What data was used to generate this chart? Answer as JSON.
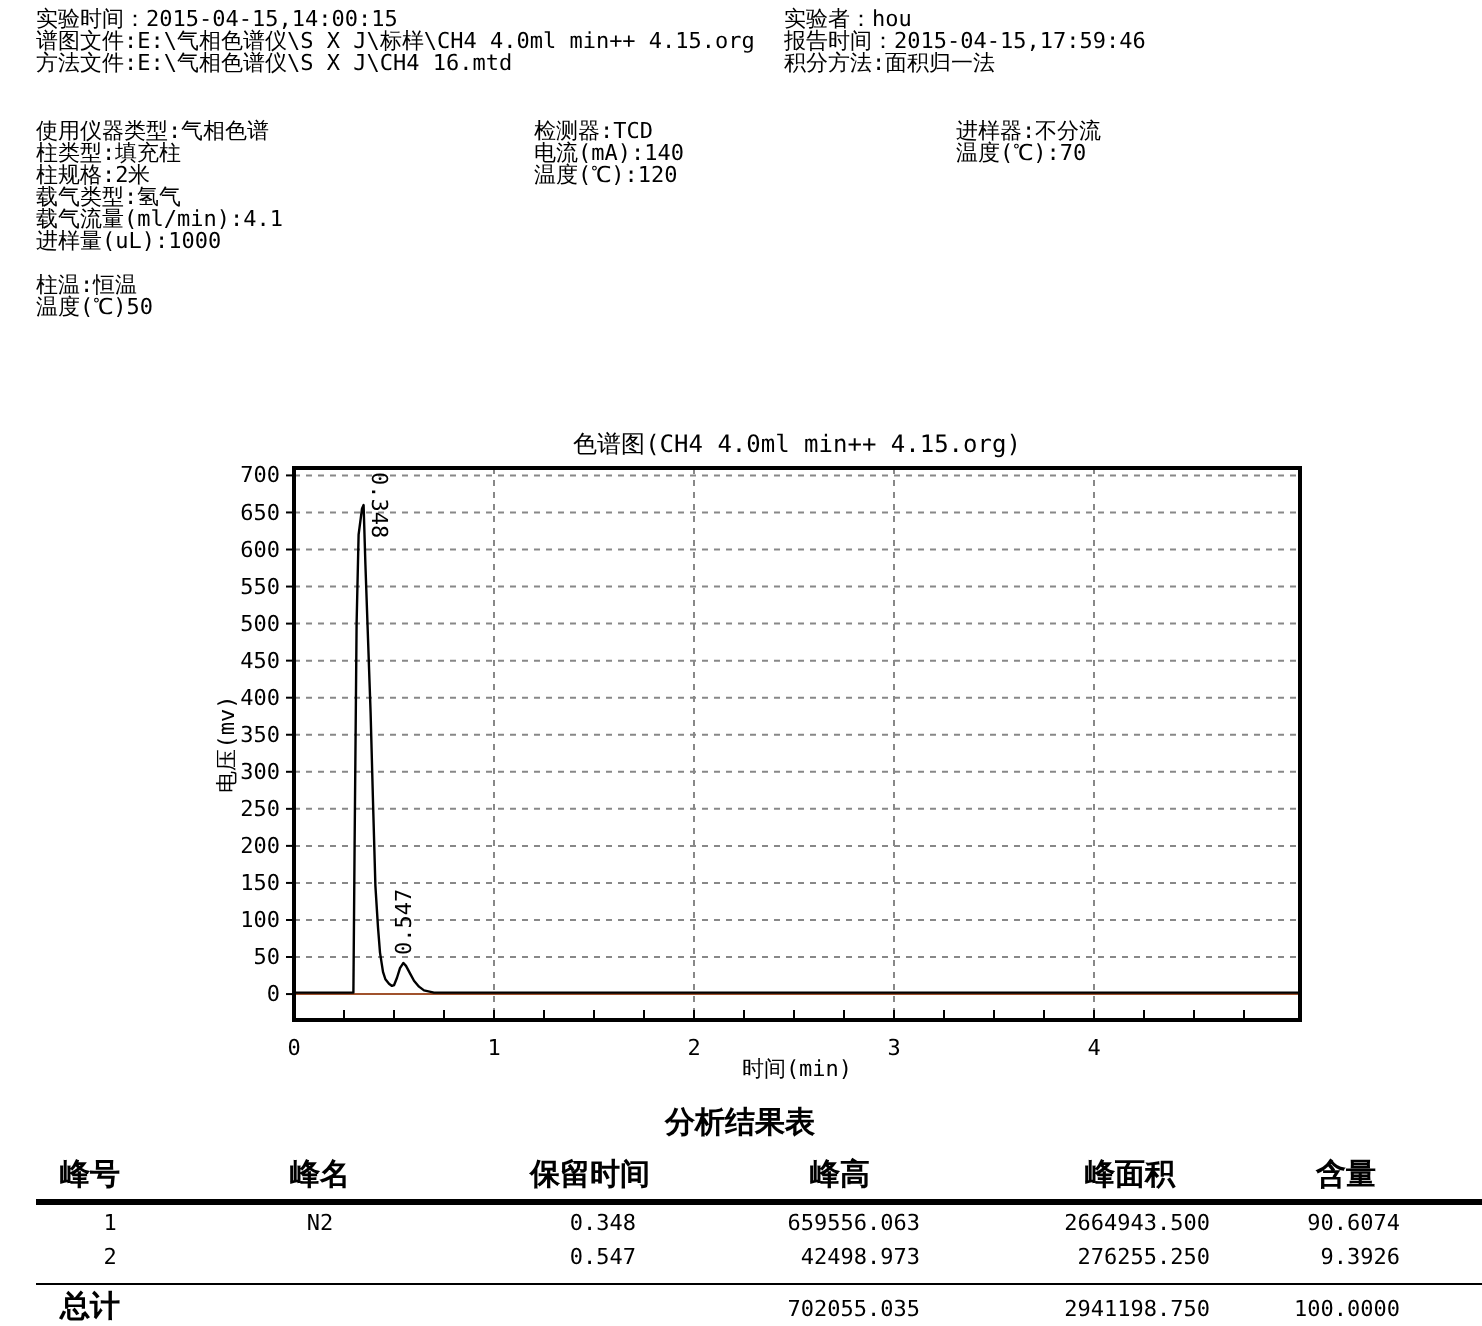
{
  "chart_data": {
    "type": "line",
    "title": "色谱图(CH4 4.0ml min++ 4.15.org)",
    "xlabel": "时间(min)",
    "ylabel": "电压(mv)",
    "series": [
      {
        "color": "#000000",
        "x": [
          0,
          0.29,
          0.297,
          0.303,
          0.313,
          0.323,
          0.34,
          0.348,
          0.357,
          0.37,
          0.383,
          0.395,
          0.407,
          0.42,
          0.43,
          0.445,
          0.457,
          0.475,
          0.49,
          0.5,
          0.515,
          0.53,
          0.547,
          0.56,
          0.58,
          0.6,
          0.625,
          0.65,
          0.7,
          1.0,
          2.0,
          3.0,
          4.0,
          5.03
        ],
        "values": [
          2,
          2,
          2,
          200,
          500,
          620,
          655,
          660,
          580,
          480,
          380,
          260,
          146,
          90,
          56,
          30,
          20,
          14,
          11,
          12,
          22,
          35,
          42,
          38,
          28,
          18,
          10,
          5,
          2,
          2,
          2,
          2,
          2,
          2
        ]
      }
    ],
    "xlim": [
      0,
      5.03
    ],
    "ylim": [
      -35,
      710
    ],
    "xticks": [
      0,
      {
        "value": 0.25,
        "label": null
      },
      {
        "value": 0.5,
        "label": null
      },
      {
        "value": 0.75,
        "label": null
      },
      1,
      {
        "value": 1.25,
        "label": null
      },
      {
        "value": 1.5,
        "label": null
      },
      {
        "value": 1.75,
        "label": null
      },
      2,
      {
        "value": 2.25,
        "label": null
      },
      {
        "value": 2.5,
        "label": null
      },
      {
        "value": 2.75,
        "label": null
      },
      3,
      {
        "value": 3.25,
        "label": null
      },
      {
        "value": 3.5,
        "label": null
      },
      {
        "value": 3.75,
        "label": null
      },
      4,
      {
        "value": 4.25,
        "label": null
      },
      {
        "value": 4.5,
        "label": null
      },
      {
        "value": 4.75,
        "label": null
      }
    ],
    "yticks": [
      0,
      50,
      100,
      150,
      200,
      250,
      300,
      350,
      400,
      450,
      500,
      550,
      600,
      650,
      700
    ],
    "grid": true,
    "marker": "none",
    "line_style": "solid",
    "ref_lines": [
      {
        "axis": "y",
        "value": 0,
        "label": null,
        "color": "#a0522d"
      }
    ],
    "annotations": [
      {
        "text": "0.348",
        "x": 0.348,
        "y": 660
      },
      {
        "text": "0.547",
        "x": 0.547,
        "y": 42
      },
      "实验时间：2015-04-15,14:00:15",
      "谱图文件:E:\\气相色谱仪\\S X J\\标样\\CH4 4.0ml min++ 4.15.org",
      "方法文件:E:\\气相色谱仪\\S X J\\CH4 16.mtd",
      "实验者：hou",
      "报告时间：2015-04-15,17:59:46",
      "积分方法:面积归一法",
      "使用仪器类型:气相色谱",
      "柱类型:填充柱",
      "柱规格:2米",
      "载气类型:氢气",
      "载气流量(ml/min):4.1",
      "进样量(uL):1000",
      "柱温:恒温",
      "温度(℃)50",
      "检测器:TCD",
      "电流(mA):140",
      "温度(℃):120",
      "进样器:不分流",
      "温度(℃):70",
      "分析结果表",
      "峰号",
      "峰名",
      "保留时间",
      "峰高",
      "峰面积",
      "含量",
      "1",
      "N2",
      "0.348",
      "659556.063",
      "2664943.500",
      "90.6074",
      "2",
      "0.547",
      "42498.973",
      "276255.250",
      "9.3926",
      "总计",
      "702055.035",
      "2941198.750",
      "100.0000"
    ]
  }
}
